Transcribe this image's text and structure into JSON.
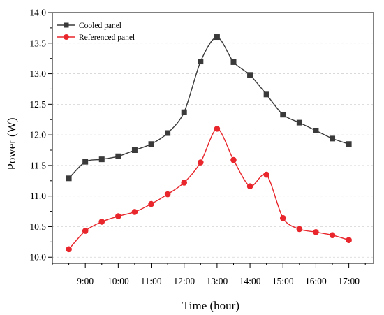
{
  "chart_data": {
    "type": "line",
    "xlabel": "Time (hour)",
    "ylabel": "Power (W)",
    "x_unit": "hour",
    "xlim": [
      "08:00",
      "17:45"
    ],
    "ylim": [
      9.9,
      14.0
    ],
    "x_ticks": [
      "9:00",
      "10:00",
      "11:00",
      "12:00",
      "13:00",
      "14:00",
      "15:00",
      "16:00",
      "17:00"
    ],
    "y_ticks": [
      "10.0",
      "10.5",
      "11.0",
      "11.5",
      "12.0",
      "12.5",
      "13.0",
      "13.5",
      "14.0"
    ],
    "grid": "dashed horizontal",
    "legend_position": "top-left",
    "x": [
      "08:30",
      "09:00",
      "09:30",
      "10:00",
      "10:30",
      "11:00",
      "11:30",
      "12:00",
      "12:30",
      "13:00",
      "13:30",
      "14:00",
      "14:30",
      "15:00",
      "15:30",
      "16:00",
      "16:30",
      "17:00"
    ],
    "series": [
      {
        "name": "Cooled panel",
        "marker": "square",
        "color": "#3a3a3a",
        "values": [
          11.29,
          11.56,
          11.6,
          11.65,
          11.75,
          11.85,
          12.03,
          12.37,
          13.2,
          13.6,
          13.19,
          12.98,
          12.66,
          12.33,
          12.2,
          12.07,
          11.94,
          11.85
        ]
      },
      {
        "name": "Referenced panel",
        "marker": "circle",
        "color": "#e8262b",
        "values": [
          10.13,
          10.43,
          10.58,
          10.67,
          10.74,
          10.87,
          11.03,
          11.22,
          11.55,
          12.1,
          11.59,
          11.16,
          11.35,
          10.64,
          10.46,
          10.41,
          10.36,
          10.28
        ]
      }
    ]
  }
}
